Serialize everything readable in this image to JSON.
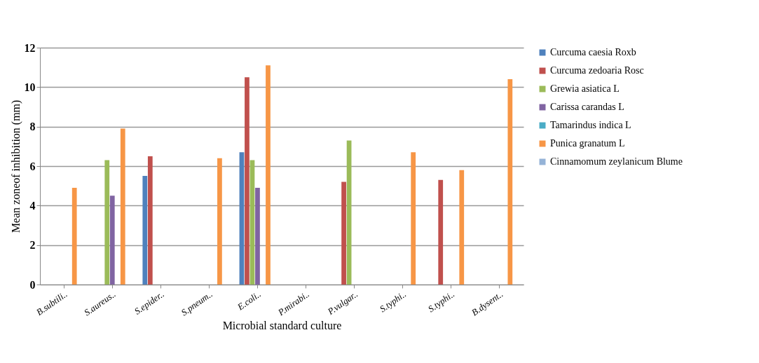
{
  "chart_data": {
    "type": "bar",
    "xlabel": "Microbial standard culture",
    "ylabel": "Mean zoneof inhibition (mm)",
    "categories": [
      "B.subtili..",
      "S.aureus..",
      "S.epider..",
      "S.pneum..",
      "E.coli..",
      "P.mirabi..",
      "P.vulgar..",
      "S.typhi..",
      "S.typhi..",
      "B.dysent.."
    ],
    "series": [
      {
        "name": "Curcuma caesia Roxb",
        "color": "#4f81bd",
        "values": [
          0,
          0,
          5.5,
          0,
          6.7,
          0,
          0,
          0,
          0,
          0
        ]
      },
      {
        "name": "Curcuma zedoaria Rosc",
        "color": "#c0504d",
        "values": [
          0,
          0,
          6.5,
          0,
          10.5,
          0,
          5.2,
          0,
          5.3,
          0
        ]
      },
      {
        "name": "Grewia asiatica L",
        "color": "#9bbb59",
        "values": [
          0,
          6.3,
          0,
          0,
          6.3,
          0,
          7.3,
          0,
          0,
          0
        ]
      },
      {
        "name": "Carissa carandas L",
        "color": "#8064a2",
        "values": [
          0,
          4.5,
          0,
          0,
          4.9,
          0,
          0,
          0,
          0,
          0
        ]
      },
      {
        "name": "Tamarindus indica L",
        "color": "#4bacc6",
        "values": [
          0,
          0,
          0,
          0,
          0,
          0,
          0,
          0,
          0,
          0
        ]
      },
      {
        "name": "Punica granatum L",
        "color": "#f79646",
        "values": [
          4.9,
          7.9,
          0,
          6.4,
          11.1,
          0,
          0,
          6.7,
          5.8,
          10.4
        ]
      },
      {
        "name": "Cinnamomum zeylanicum Blume",
        "color": "#95b3d7",
        "values": [
          0,
          0,
          0,
          0,
          0,
          0,
          0,
          0,
          0,
          0
        ]
      }
    ],
    "ylim": [
      0,
      12
    ],
    "yticks": [
      0,
      2,
      4,
      6,
      8,
      10,
      12
    ],
    "grid": "y",
    "legend": "right"
  }
}
